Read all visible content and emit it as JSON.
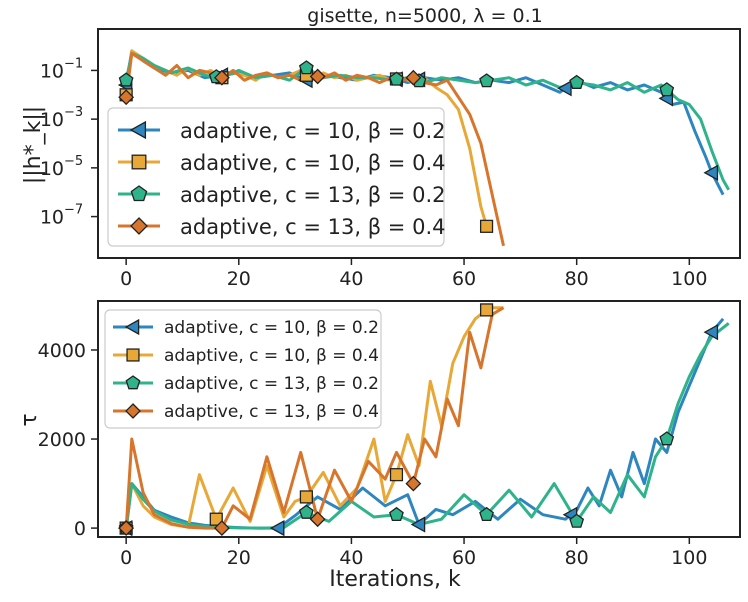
{
  "colors": {
    "blue": "#2e86c1",
    "yellow": "#e8a838",
    "green": "#2fb38a",
    "orange": "#d8752c",
    "axis": "#222222"
  },
  "chart_data": [
    {
      "type": "line",
      "title": "gisette, n=5000, λ = 0.1",
      "xlabel": "",
      "ylabel": "||h*_k||",
      "yscale": "log",
      "xlim": [
        -5,
        109
      ],
      "ylim_log10": [
        -8.7,
        0.7
      ],
      "xticks": [
        0,
        20,
        40,
        60,
        80,
        100
      ],
      "xtick_labels": [
        "0",
        "20",
        "40",
        "60",
        "80",
        "100"
      ],
      "yticks_log10": [
        -1,
        -3,
        -5,
        -7
      ],
      "ytick_labels": [
        "10",
        "10",
        "10",
        "10"
      ],
      "ytick_exponents": [
        "−1",
        "−3",
        "−5",
        "−7"
      ],
      "legend_position": "center-left",
      "series": [
        {
          "name": "adaptive, c = 10, β = 0.2",
          "color_key": "blue",
          "marker": "triangle-left",
          "markers_x": [
            0,
            17,
            32,
            48,
            52,
            78,
            96,
            104
          ],
          "x": [
            0,
            1,
            3,
            5,
            8,
            11,
            14,
            17,
            20,
            23,
            26,
            29,
            32,
            35,
            38,
            41,
            44,
            47,
            50,
            53,
            56,
            59,
            62,
            65,
            68,
            71,
            74,
            77,
            80,
            83,
            86,
            89,
            92,
            95,
            97,
            99,
            101,
            103,
            104,
            106
          ],
          "log10y": [
            -1.6,
            -0.2,
            -0.6,
            -0.9,
            -1.1,
            -1.0,
            -1.3,
            -1.2,
            -1.1,
            -1.3,
            -1.2,
            -1.1,
            -1.4,
            -1.2,
            -1.3,
            -1.4,
            -1.2,
            -1.3,
            -1.5,
            -1.3,
            -1.4,
            -1.3,
            -1.5,
            -1.4,
            -1.5,
            -1.3,
            -1.6,
            -1.9,
            -1.4,
            -1.7,
            -1.5,
            -1.8,
            -1.6,
            -1.9,
            -2.4,
            -2.3,
            -3.5,
            -4.6,
            -5.2,
            -6.1
          ]
        },
        {
          "name": "adaptive, c = 10, β = 0.4",
          "color_key": "yellow",
          "marker": "square",
          "markers_x": [
            0,
            17,
            32,
            48,
            64
          ],
          "x": [
            0,
            1,
            3,
            5,
            7,
            9,
            11,
            13,
            15,
            17,
            19,
            21,
            23,
            25,
            27,
            29,
            31,
            33,
            35,
            37,
            39,
            41,
            43,
            45,
            47,
            49,
            51,
            53,
            55,
            57,
            59,
            61,
            63,
            64
          ],
          "log10y": [
            -2.0,
            -0.2,
            -0.5,
            -0.8,
            -1.0,
            -1.2,
            -0.9,
            -1.2,
            -1.0,
            -1.3,
            -1.1,
            -1.2,
            -1.4,
            -1.1,
            -1.3,
            -1.2,
            -1.0,
            -1.4,
            -1.1,
            -1.3,
            -1.2,
            -1.4,
            -1.3,
            -1.2,
            -1.4,
            -1.3,
            -1.5,
            -1.3,
            -1.7,
            -2.0,
            -2.6,
            -4.2,
            -6.6,
            -7.4
          ]
        },
        {
          "name": "adaptive, c = 13, β = 0.2",
          "color_key": "green",
          "marker": "pentagon",
          "markers_x": [
            0,
            16,
            32,
            48,
            52,
            64,
            80,
            96
          ],
          "x": [
            0,
            1,
            3,
            5,
            8,
            11,
            14,
            17,
            20,
            23,
            26,
            29,
            32,
            35,
            38,
            41,
            44,
            47,
            50,
            53,
            56,
            59,
            62,
            65,
            68,
            71,
            74,
            77,
            80,
            83,
            86,
            89,
            92,
            95,
            98,
            100,
            102,
            104,
            106,
            107
          ],
          "log10y": [
            -1.4,
            -0.3,
            -0.5,
            -0.8,
            -1.1,
            -0.9,
            -1.2,
            -1.3,
            -1.0,
            -1.3,
            -1.2,
            -1.4,
            -0.9,
            -1.3,
            -1.2,
            -1.3,
            -1.3,
            -1.4,
            -1.3,
            -1.5,
            -1.3,
            -1.4,
            -1.5,
            -1.4,
            -1.3,
            -1.6,
            -1.4,
            -1.7,
            -1.5,
            -1.6,
            -1.8,
            -1.5,
            -1.9,
            -1.6,
            -2.2,
            -2.4,
            -3.0,
            -4.3,
            -5.5,
            -5.9
          ]
        },
        {
          "name": "adaptive, c = 13, β = 0.4",
          "color_key": "orange",
          "marker": "diamond",
          "markers_x": [
            0,
            17,
            34,
            51
          ],
          "x": [
            0,
            1,
            3,
            5,
            7,
            9,
            11,
            13,
            15,
            17,
            19,
            21,
            23,
            25,
            27,
            29,
            31,
            33,
            35,
            37,
            39,
            41,
            43,
            45,
            47,
            49,
            51,
            53,
            55,
            57,
            59,
            61,
            63,
            65,
            67
          ],
          "log10y": [
            -2.1,
            -0.3,
            -0.6,
            -0.9,
            -1.2,
            -0.8,
            -1.3,
            -1.0,
            -1.1,
            -1.3,
            -1.0,
            -1.4,
            -1.2,
            -1.1,
            -1.3,
            -1.2,
            -1.4,
            -1.2,
            -1.3,
            -1.1,
            -1.4,
            -1.2,
            -1.3,
            -1.5,
            -1.3,
            -1.4,
            -1.3,
            -1.5,
            -1.6,
            -1.4,
            -2.1,
            -2.8,
            -4.0,
            -6.1,
            -8.2
          ]
        }
      ]
    },
    {
      "type": "line",
      "title": "",
      "xlabel": "Iterations, k",
      "ylabel": "τ",
      "xlim": [
        -5,
        109
      ],
      "ylim": [
        -200,
        5100
      ],
      "xticks": [
        0,
        20,
        40,
        60,
        80,
        100
      ],
      "xtick_labels": [
        "0",
        "20",
        "40",
        "60",
        "80",
        "100"
      ],
      "yticks": [
        0,
        2000,
        4000
      ],
      "ytick_labels": [
        "0",
        "2000",
        "4000"
      ],
      "legend_position": "top-left",
      "series": [
        {
          "name": "adaptive, c = 10, β = 0.2",
          "color_key": "blue",
          "marker": "triangle-left",
          "markers_x": [
            0,
            27,
            52,
            79,
            104
          ],
          "x": [
            0,
            1,
            3,
            5,
            8,
            11,
            14,
            17,
            20,
            23,
            27,
            30,
            34,
            38,
            42,
            46,
            50,
            52,
            55,
            58,
            62,
            66,
            70,
            74,
            78,
            80,
            82,
            84,
            86,
            88,
            90,
            92,
            94,
            96,
            98,
            100,
            102,
            104,
            106
          ],
          "y": [
            0,
            1000,
            700,
            400,
            250,
            120,
            60,
            30,
            10,
            0,
            0,
            280,
            700,
            420,
            900,
            500,
            750,
            80,
            420,
            300,
            600,
            200,
            650,
            300,
            200,
            400,
            900,
            500,
            1300,
            700,
            1700,
            1000,
            2000,
            1700,
            2600,
            3200,
            3800,
            4400,
            4700
          ]
        },
        {
          "name": "adaptive, c = 10, β = 0.4",
          "color_key": "yellow",
          "marker": "square",
          "markers_x": [
            0,
            16,
            32,
            48,
            64
          ],
          "x": [
            0,
            1,
            3,
            5,
            8,
            11,
            13,
            16,
            19,
            22,
            25,
            28,
            30,
            32,
            35,
            38,
            41,
            44,
            46,
            48,
            50,
            52,
            54,
            56,
            58,
            60,
            62,
            64,
            65,
            67
          ],
          "y": [
            0,
            1000,
            500,
            250,
            80,
            20,
            1200,
            200,
            900,
            150,
            1400,
            250,
            600,
            700,
            1250,
            500,
            900,
            2000,
            600,
            1200,
            2100,
            1400,
            3300,
            2300,
            3700,
            4300,
            4700,
            4900,
            4950,
            4950
          ]
        },
        {
          "name": "adaptive, c = 13, β = 0.2",
          "color_key": "green",
          "marker": "pentagon",
          "markers_x": [
            0,
            32,
            48,
            64,
            80,
            96
          ],
          "x": [
            0,
            1,
            3,
            5,
            8,
            12,
            16,
            20,
            24,
            28,
            32,
            36,
            40,
            44,
            48,
            52,
            56,
            60,
            64,
            68,
            72,
            76,
            80,
            83,
            86,
            89,
            92,
            94,
            96,
            98,
            100,
            102,
            104,
            107
          ],
          "y": [
            0,
            1000,
            650,
            380,
            180,
            60,
            20,
            5,
            0,
            10,
            350,
            150,
            600,
            250,
            300,
            80,
            200,
            750,
            300,
            850,
            250,
            1000,
            150,
            700,
            350,
            1200,
            700,
            1600,
            2000,
            2800,
            3400,
            3900,
            4300,
            4600
          ]
        },
        {
          "name": "adaptive, c = 13, β = 0.4",
          "color_key": "orange",
          "marker": "diamond",
          "markers_x": [
            0,
            17,
            34,
            51
          ],
          "x": [
            0,
            1,
            3,
            5,
            8,
            11,
            14,
            17,
            19,
            22,
            25,
            28,
            31,
            34,
            37,
            40,
            43,
            46,
            48,
            51,
            53,
            55,
            57,
            59,
            61,
            63,
            65,
            67
          ],
          "y": [
            0,
            2000,
            800,
            300,
            100,
            20,
            0,
            0,
            500,
            200,
            1600,
            350,
            1700,
            200,
            1300,
            600,
            1500,
            1100,
            1700,
            1000,
            2000,
            1600,
            2900,
            2300,
            4400,
            3600,
            4800,
            4950
          ]
        }
      ]
    }
  ]
}
